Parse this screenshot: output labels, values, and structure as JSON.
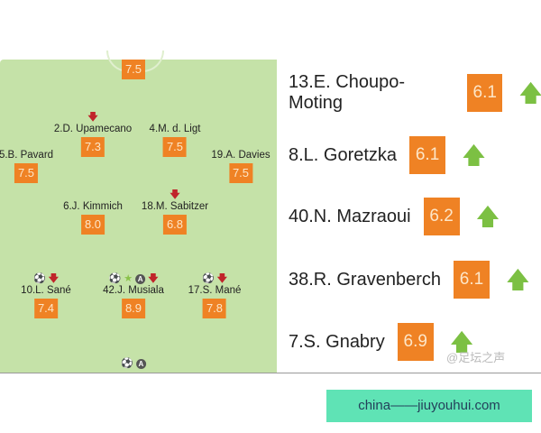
{
  "pitch": {
    "goalkeeper": {
      "rating": "7.5"
    },
    "players": [
      {
        "name": "2.D. Upamecano",
        "rating": "7.3",
        "icons": [
          "sub-out"
        ]
      },
      {
        "name": "4.M. d. Ligt",
        "rating": "7.5",
        "icons": []
      },
      {
        "name": "5.B. Pavard",
        "rating": "7.5",
        "icons": []
      },
      {
        "name": "19.A. Davies",
        "rating": "7.5",
        "icons": []
      },
      {
        "name": "6.J. Kimmich",
        "rating": "8.0",
        "icons": []
      },
      {
        "name": "18.M. Sabitzer",
        "rating": "6.8",
        "icons": [
          "sub-out"
        ]
      },
      {
        "name": "10.L. Sané",
        "rating": "7.4",
        "icons": [
          "goal",
          "sub-out"
        ]
      },
      {
        "name": "42.J. Musiala",
        "rating": "8.9",
        "icons": [
          "goal",
          "star",
          "assist",
          "sub-out"
        ]
      },
      {
        "name": "17.S. Mané",
        "rating": "7.8",
        "icons": [
          "goal",
          "sub-out"
        ]
      }
    ],
    "striker_icons": [
      "goal",
      "assist"
    ],
    "assist_letter": "A"
  },
  "subs": [
    {
      "name": "13.E. Choupo-Moting",
      "rating": "6.1"
    },
    {
      "name": "8.L. Goretzka",
      "rating": "6.1"
    },
    {
      "name": "40.N. Mazraoui",
      "rating": "6.2"
    },
    {
      "name": "38.R. Gravenberch",
      "rating": "6.1"
    },
    {
      "name": "7.S. Gnabry",
      "rating": "6.9"
    }
  ],
  "watermark": "@足坛之声",
  "banner": "china——jiuyouhui.com",
  "colors": {
    "rating": "#ef8224",
    "pitch": "#c5e2a8",
    "sub_in": "#7cc043",
    "sub_out": "#c0242a",
    "banner": "#5fe3b5"
  }
}
